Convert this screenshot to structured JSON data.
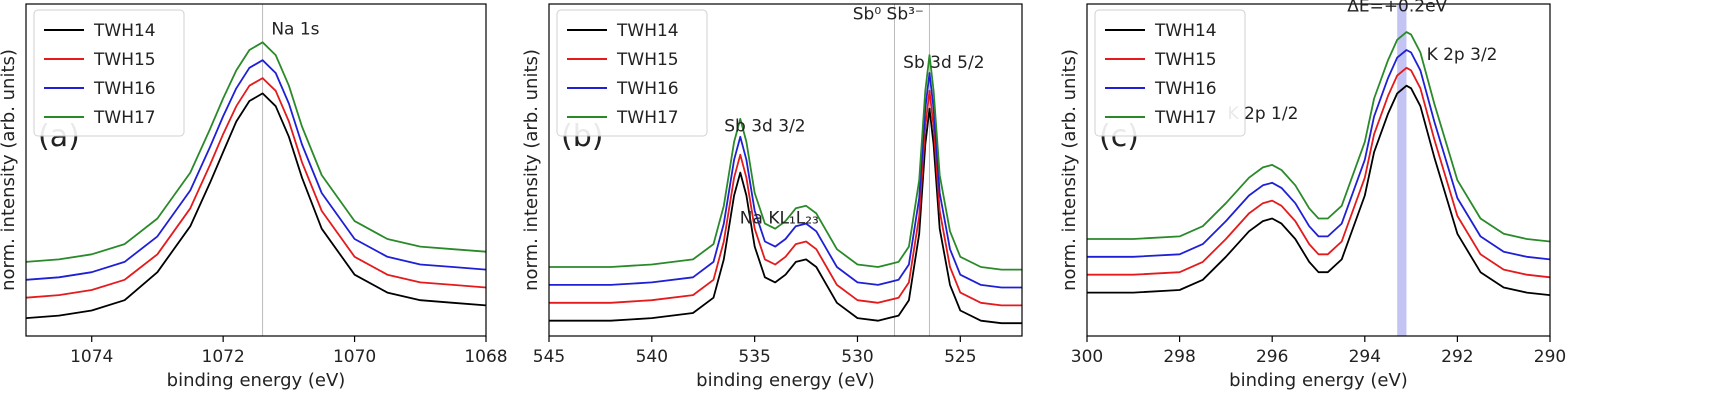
{
  "chart_data": [
    {
      "type": "line",
      "panel_label": "(a)",
      "xlabel": "binding energy (eV)",
      "ylabel": "norm. intensity (arb. units)",
      "xlim": [
        1075,
        1068
      ],
      "x_reversed": true,
      "ylim": [
        0,
        1.3
      ],
      "xticks": [
        1074,
        1072,
        1070,
        1068
      ],
      "legend_position": "top-left",
      "vlines": [
        1071.4
      ],
      "annotations": [
        {
          "text": "Na 1s",
          "x": 1070.9,
          "y": 1.18
        }
      ],
      "series": [
        {
          "name": "TWH14",
          "color": "#000000",
          "x": [
            1075,
            1074.5,
            1074,
            1073.5,
            1073,
            1072.5,
            1072.2,
            1072,
            1071.8,
            1071.6,
            1071.4,
            1071.2,
            1071,
            1070.8,
            1070.5,
            1070,
            1069.5,
            1069,
            1068.5,
            1068
          ],
          "y": [
            0.07,
            0.08,
            0.1,
            0.14,
            0.25,
            0.43,
            0.6,
            0.72,
            0.84,
            0.92,
            0.95,
            0.9,
            0.78,
            0.62,
            0.42,
            0.24,
            0.17,
            0.14,
            0.13,
            0.12
          ]
        },
        {
          "name": "TWH15",
          "color": "#e41a1c",
          "x": [
            1075,
            1074.5,
            1074,
            1073.5,
            1073,
            1072.5,
            1072.2,
            1072,
            1071.8,
            1071.6,
            1071.4,
            1071.2,
            1071,
            1070.8,
            1070.5,
            1070,
            1069.5,
            1069,
            1068.5,
            1068
          ],
          "y": [
            0.15,
            0.16,
            0.18,
            0.22,
            0.32,
            0.5,
            0.67,
            0.79,
            0.9,
            0.98,
            1.01,
            0.96,
            0.84,
            0.68,
            0.49,
            0.31,
            0.24,
            0.21,
            0.2,
            0.19
          ]
        },
        {
          "name": "TWH16",
          "color": "#1f1fd6",
          "x": [
            1075,
            1074.5,
            1074,
            1073.5,
            1073,
            1072.5,
            1072.2,
            1072,
            1071.8,
            1071.6,
            1071.4,
            1071.2,
            1071,
            1070.8,
            1070.5,
            1070,
            1069.5,
            1069,
            1068.5,
            1068
          ],
          "y": [
            0.22,
            0.23,
            0.25,
            0.29,
            0.39,
            0.57,
            0.74,
            0.86,
            0.97,
            1.05,
            1.08,
            1.03,
            0.91,
            0.75,
            0.56,
            0.38,
            0.31,
            0.28,
            0.27,
            0.26
          ]
        },
        {
          "name": "TWH17",
          "color": "#2a8a2a",
          "x": [
            1075,
            1074.5,
            1074,
            1073.5,
            1073,
            1072.5,
            1072.2,
            1072,
            1071.8,
            1071.6,
            1071.4,
            1071.2,
            1071,
            1070.8,
            1070.5,
            1070,
            1069.5,
            1069,
            1068.5,
            1068
          ],
          "y": [
            0.29,
            0.3,
            0.32,
            0.36,
            0.46,
            0.64,
            0.81,
            0.93,
            1.04,
            1.12,
            1.15,
            1.1,
            0.98,
            0.82,
            0.63,
            0.45,
            0.38,
            0.35,
            0.34,
            0.33
          ]
        }
      ]
    },
    {
      "type": "line",
      "panel_label": "(b)",
      "xlabel": "binding energy (eV)",
      "ylabel": "norm. intensity (arb. units)",
      "xlim": [
        545,
        522
      ],
      "x_reversed": true,
      "ylim": [
        0,
        1.3
      ],
      "xticks": [
        545,
        540,
        535,
        530,
        525
      ],
      "legend_position": "top-left",
      "vlines": [
        528.2,
        526.5
      ],
      "annotations": [
        {
          "text": "Sb 3d 3/2",
          "x": 534.5,
          "y": 0.8
        },
        {
          "text": "Na KL₁L₂₃",
          "x": 533.8,
          "y": 0.44
        },
        {
          "text": "Sb⁰ Sb³⁻",
          "x": 528.5,
          "y": 1.24
        },
        {
          "text": "Sb 3d 5/2",
          "x": 525.8,
          "y": 1.05
        }
      ],
      "series": [
        {
          "name": "TWH14",
          "color": "#000000",
          "x": [
            545,
            542,
            540,
            538,
            537,
            536.5,
            536,
            535.7,
            535.4,
            535,
            534.5,
            534,
            533.5,
            533,
            532.5,
            532,
            531.5,
            531,
            530,
            529,
            528,
            527.5,
            527,
            526.7,
            526.5,
            526.3,
            526,
            525.5,
            525,
            524,
            523,
            522
          ],
          "y": [
            0.06,
            0.06,
            0.07,
            0.09,
            0.15,
            0.3,
            0.55,
            0.64,
            0.55,
            0.35,
            0.23,
            0.21,
            0.24,
            0.29,
            0.3,
            0.27,
            0.2,
            0.13,
            0.07,
            0.06,
            0.08,
            0.14,
            0.4,
            0.75,
            0.89,
            0.75,
            0.42,
            0.2,
            0.1,
            0.06,
            0.05,
            0.05
          ]
        },
        {
          "name": "TWH15",
          "color": "#e41a1c",
          "x": [
            545,
            542,
            540,
            538,
            537,
            536.5,
            536,
            535.7,
            535.4,
            535,
            534.5,
            534,
            533.5,
            533,
            532.5,
            532,
            531.5,
            531,
            530,
            529,
            528,
            527.5,
            527,
            526.7,
            526.5,
            526.3,
            526,
            525.5,
            525,
            524,
            523,
            522
          ],
          "y": [
            0.13,
            0.13,
            0.14,
            0.16,
            0.22,
            0.37,
            0.62,
            0.71,
            0.62,
            0.42,
            0.3,
            0.28,
            0.31,
            0.36,
            0.37,
            0.34,
            0.27,
            0.2,
            0.14,
            0.13,
            0.15,
            0.21,
            0.47,
            0.82,
            0.96,
            0.82,
            0.49,
            0.27,
            0.17,
            0.13,
            0.12,
            0.12
          ]
        },
        {
          "name": "TWH16",
          "color": "#1f1fd6",
          "x": [
            545,
            542,
            540,
            538,
            537,
            536.5,
            536,
            535.7,
            535.4,
            535,
            534.5,
            534,
            533.5,
            533,
            532.5,
            532,
            531.5,
            531,
            530,
            529,
            528,
            527.5,
            527,
            526.7,
            526.5,
            526.3,
            526,
            525.5,
            525,
            524,
            523,
            522
          ],
          "y": [
            0.2,
            0.2,
            0.21,
            0.23,
            0.29,
            0.44,
            0.69,
            0.78,
            0.69,
            0.49,
            0.37,
            0.35,
            0.38,
            0.43,
            0.44,
            0.41,
            0.34,
            0.27,
            0.21,
            0.2,
            0.22,
            0.28,
            0.54,
            0.89,
            1.03,
            0.89,
            0.56,
            0.34,
            0.24,
            0.2,
            0.19,
            0.19
          ]
        },
        {
          "name": "TWH17",
          "color": "#2a8a2a",
          "x": [
            545,
            542,
            540,
            538,
            537,
            536.5,
            536,
            535.7,
            535.4,
            535,
            534.5,
            534,
            533.5,
            533,
            532.5,
            532,
            531.5,
            531,
            530,
            529,
            528,
            527.5,
            527,
            526.7,
            526.5,
            526.3,
            526,
            525.5,
            525,
            524,
            523,
            522
          ],
          "y": [
            0.27,
            0.27,
            0.28,
            0.3,
            0.36,
            0.51,
            0.76,
            0.85,
            0.76,
            0.56,
            0.44,
            0.42,
            0.45,
            0.5,
            0.51,
            0.48,
            0.41,
            0.34,
            0.28,
            0.27,
            0.29,
            0.35,
            0.61,
            0.96,
            1.1,
            0.96,
            0.63,
            0.41,
            0.31,
            0.27,
            0.26,
            0.26
          ]
        }
      ]
    },
    {
      "type": "line",
      "panel_label": "(c)",
      "xlabel": "binding energy (eV)",
      "ylabel": "norm. intensity (arb. units)",
      "xlim": [
        300,
        290
      ],
      "x_reversed": true,
      "ylim": [
        0,
        1.3
      ],
      "xticks": [
        300,
        298,
        296,
        294,
        292,
        290
      ],
      "legend_position": "top-left",
      "shaded_band": [
        293.3,
        293.1
      ],
      "annotations": [
        {
          "text": "ΔE=+0.2eV",
          "x": 293.3,
          "y": 1.27
        },
        {
          "text": "K 2p 3/2",
          "x": 291.9,
          "y": 1.08
        },
        {
          "text": "K 2p 1/2",
          "x": 296.2,
          "y": 0.85
        }
      ],
      "series": [
        {
          "name": "TWH14",
          "color": "#000000",
          "x": [
            300,
            299,
            298,
            297.5,
            297,
            296.5,
            296.2,
            296,
            295.8,
            295.5,
            295.2,
            295,
            294.8,
            294.5,
            294,
            293.8,
            293.5,
            293.3,
            293.1,
            293,
            292.8,
            292.5,
            292,
            291.5,
            291,
            290.5,
            290
          ],
          "y": [
            0.17,
            0.17,
            0.18,
            0.22,
            0.31,
            0.41,
            0.45,
            0.46,
            0.44,
            0.38,
            0.29,
            0.25,
            0.25,
            0.3,
            0.55,
            0.72,
            0.87,
            0.95,
            0.98,
            0.97,
            0.9,
            0.7,
            0.4,
            0.25,
            0.19,
            0.17,
            0.16
          ]
        },
        {
          "name": "TWH15",
          "color": "#e41a1c",
          "x": [
            300,
            299,
            298,
            297.5,
            297,
            296.5,
            296.2,
            296,
            295.8,
            295.5,
            295.2,
            295,
            294.8,
            294.5,
            294,
            293.8,
            293.5,
            293.3,
            293.1,
            293,
            292.8,
            292.5,
            292,
            291.5,
            291,
            290.5,
            290
          ],
          "y": [
            0.24,
            0.24,
            0.25,
            0.29,
            0.38,
            0.48,
            0.52,
            0.53,
            0.51,
            0.45,
            0.36,
            0.32,
            0.32,
            0.37,
            0.62,
            0.79,
            0.94,
            1.02,
            1.05,
            1.04,
            0.97,
            0.77,
            0.47,
            0.32,
            0.26,
            0.24,
            0.23
          ]
        },
        {
          "name": "TWH16",
          "color": "#1f1fd6",
          "x": [
            300,
            299,
            298,
            297.5,
            297,
            296.5,
            296.2,
            296,
            295.8,
            295.5,
            295.2,
            295,
            294.8,
            294.5,
            294,
            293.8,
            293.5,
            293.3,
            293.1,
            293,
            292.8,
            292.5,
            292,
            291.5,
            291,
            290.5,
            290
          ],
          "y": [
            0.31,
            0.31,
            0.32,
            0.36,
            0.45,
            0.55,
            0.59,
            0.6,
            0.58,
            0.52,
            0.43,
            0.39,
            0.39,
            0.44,
            0.69,
            0.86,
            1.01,
            1.09,
            1.12,
            1.11,
            1.04,
            0.84,
            0.54,
            0.39,
            0.33,
            0.31,
            0.3
          ]
        },
        {
          "name": "TWH17",
          "color": "#2a8a2a",
          "x": [
            300,
            299,
            298,
            297.5,
            297,
            296.5,
            296.2,
            296,
            295.8,
            295.5,
            295.2,
            295,
            294.8,
            294.5,
            294,
            293.8,
            293.5,
            293.3,
            293.1,
            293,
            292.8,
            292.5,
            292,
            291.5,
            291,
            290.5,
            290
          ],
          "y": [
            0.38,
            0.38,
            0.39,
            0.43,
            0.52,
            0.62,
            0.66,
            0.67,
            0.65,
            0.59,
            0.5,
            0.46,
            0.46,
            0.51,
            0.76,
            0.93,
            1.08,
            1.16,
            1.19,
            1.18,
            1.11,
            0.91,
            0.61,
            0.46,
            0.4,
            0.38,
            0.37
          ]
        }
      ]
    }
  ]
}
